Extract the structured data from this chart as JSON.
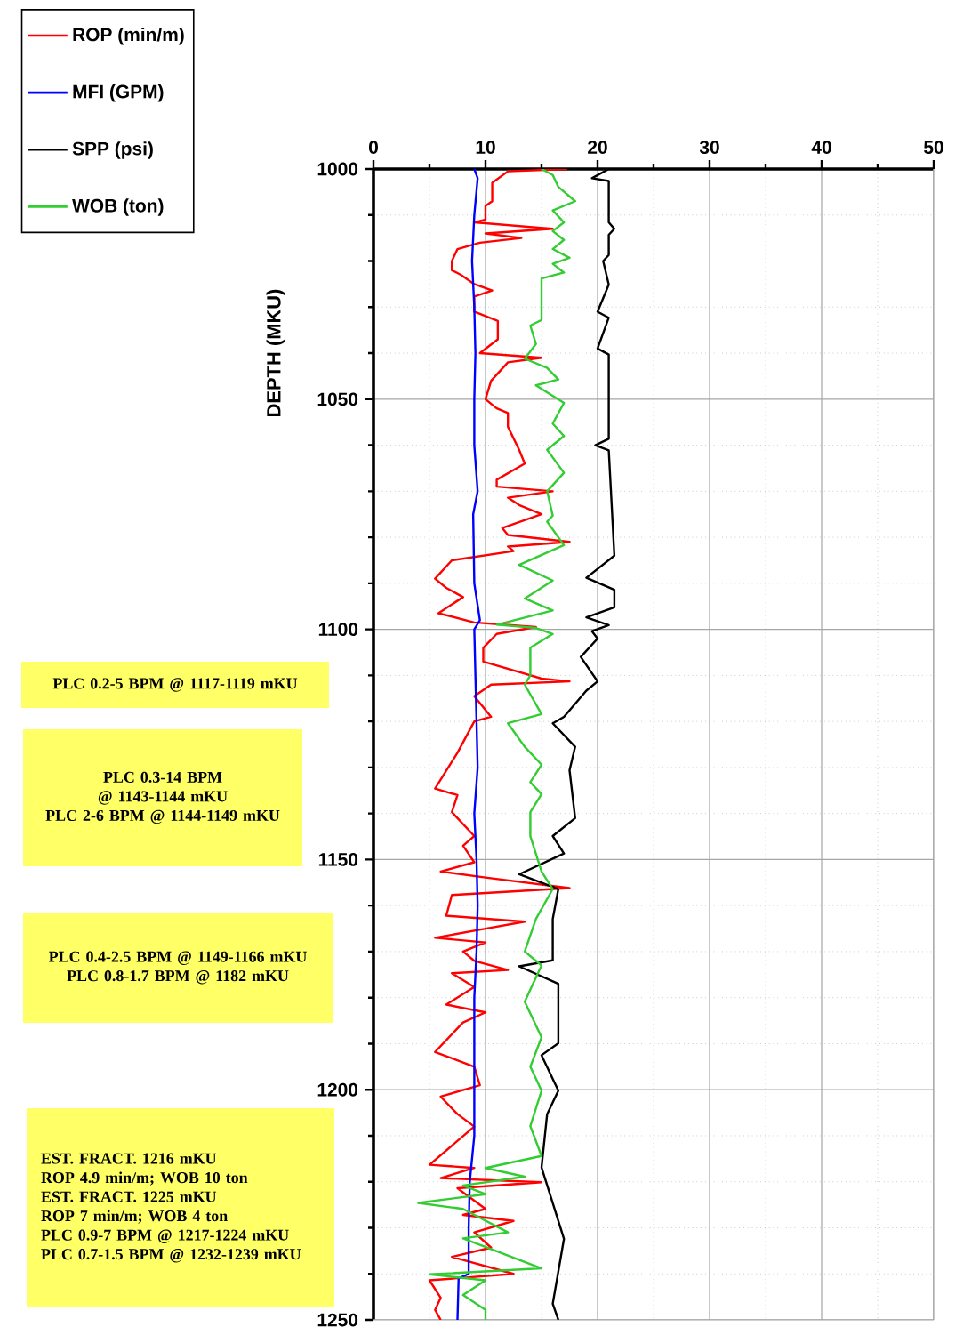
{
  "chart_data": {
    "type": "line",
    "ylabel": "DEPTH (MKU)",
    "xlim": [
      0,
      50
    ],
    "xticks": [
      0,
      10,
      20,
      30,
      40,
      50
    ],
    "ylim": [
      1250,
      1000
    ],
    "yticks": [
      1000,
      1050,
      1100,
      1150,
      1200,
      1250
    ],
    "grid": true,
    "legend": "top left",
    "series": [
      {
        "name": "ROP (min/m)",
        "color": "#ff0000",
        "x": [
          17.3,
          12,
          10.6,
          10.6,
          10,
          10,
          9,
          16,
          10,
          13.2,
          9.5,
          7.5,
          7,
          7,
          7.8,
          9,
          10.6,
          9,
          9,
          11.1,
          11.1,
          9.5,
          15,
          12,
          10.5,
          10,
          11,
          12,
          12,
          13,
          13.5,
          11,
          11,
          16,
          12,
          13,
          15,
          11.5,
          12,
          17.5,
          12,
          12.5,
          7,
          5.5,
          6.5,
          8,
          5.8,
          9,
          14.5,
          11,
          9.8,
          9.8,
          15,
          17.5,
          10.5,
          9,
          10.5,
          9,
          7.5,
          5.5,
          7.5,
          7,
          9,
          8,
          9,
          6,
          10,
          17.5,
          7,
          6.5,
          13.5,
          10,
          5.5,
          10,
          8,
          9,
          12,
          7,
          9,
          6.5,
          10,
          8,
          5.5,
          9,
          9.5,
          6,
          7.5,
          9,
          5,
          9,
          6,
          15,
          7.5,
          10,
          8,
          12.5,
          9,
          10.5,
          7,
          12.5,
          5,
          6,
          5.5,
          6
        ],
        "values": [
          1000,
          1000.5,
          1003,
          1007,
          1008,
          1011,
          1011.6,
          1013,
          1014,
          1015,
          1016,
          1017.4,
          1020,
          1022,
          1023,
          1025,
          1026.4,
          1027.7,
          1031,
          1033,
          1037,
          1040,
          1041,
          1042,
          1046,
          1050,
          1052,
          1053,
          1056,
          1061,
          1064,
          1067.5,
          1069,
          1070,
          1071.4,
          1073,
          1075,
          1078,
          1079.5,
          1081,
          1082,
          1083,
          1085,
          1089,
          1091,
          1093,
          1096.5,
          1098.5,
          1099.5,
          1101,
          1104,
          1107,
          1110.7,
          1111.3,
          1112,
          1114.5,
          1119,
          1120,
          1126.8,
          1134.6,
          1136,
          1139.7,
          1144.9,
          1147,
          1150.6,
          1152.6,
          1153.9,
          1156.2,
          1157.7,
          1162.2,
          1163.5,
          1165,
          1167,
          1168,
          1170,
          1172,
          1174,
          1174.7,
          1177.7,
          1181.5,
          1183.2,
          1185.4,
          1191.8,
          1195,
          1199,
          1201.5,
          1205.3,
          1208,
          1216.3,
          1217,
          1219.2,
          1220.1,
          1221.4,
          1225.9,
          1227.2,
          1228.5,
          1231,
          1234.3,
          1236.3,
          1240,
          1241.4,
          1245.2,
          1247.8,
          1250
        ]
      },
      {
        "name": "MFI (GPM)",
        "color": "#0000ff",
        "x": [
          9,
          9.3,
          9,
          8.8,
          9,
          9.1,
          9,
          9,
          9.3,
          8.9,
          9,
          9.5,
          9,
          9.2,
          9.3,
          9,
          9.2,
          9.3,
          9.2,
          9,
          9,
          8.6,
          8.5,
          8.5,
          7.6,
          7.5
        ],
        "values": [
          1000,
          1002,
          1010,
          1020,
          1030,
          1040,
          1050,
          1060,
          1070,
          1075,
          1090,
          1098,
          1100,
          1120,
          1130,
          1140,
          1150,
          1160,
          1170,
          1180,
          1210,
          1220,
          1230,
          1240,
          1241,
          1250
        ]
      },
      {
        "name": "SPP (psi)",
        "color": "#000000",
        "x": [
          21,
          19.5,
          21,
          21,
          21.5,
          21,
          21,
          20.5,
          21,
          20,
          21,
          20,
          21,
          21,
          19.8,
          21,
          21.5,
          19,
          21.5,
          21.5,
          19,
          21,
          19.5,
          20,
          18.5,
          20,
          19,
          17,
          16,
          18,
          17.5,
          18,
          16,
          17,
          13,
          16.5,
          16,
          16,
          13,
          16.5,
          16.5,
          15,
          16.5,
          15.5,
          15,
          16,
          17,
          16,
          16.5
        ],
        "values": [
          1000,
          1002,
          1002.6,
          1011.6,
          1013,
          1014.3,
          1018.7,
          1020,
          1025.1,
          1031,
          1032.3,
          1039,
          1040.3,
          1058.6,
          1060,
          1061.1,
          1084,
          1088.8,
          1091.4,
          1095.2,
          1097.4,
          1099.1,
          1100.4,
          1102,
          1106,
          1111.3,
          1113.3,
          1119,
          1120.4,
          1125.5,
          1130.6,
          1141,
          1144.9,
          1148.7,
          1153.2,
          1156.4,
          1162.9,
          1171.9,
          1173.2,
          1177,
          1189.9,
          1192.5,
          1200.2,
          1205.3,
          1216.9,
          1224.6,
          1232.4,
          1246.5,
          1250
        ]
      },
      {
        "name": "WOB (ton)",
        "color": "#33cc33",
        "x": [
          15,
          16,
          16.5,
          18,
          16,
          17,
          16,
          17,
          16,
          17.5,
          16,
          17,
          15,
          15,
          14,
          14.5,
          13.5,
          15.5,
          16.5,
          14.5,
          17,
          16,
          17,
          15.5,
          17,
          15.5,
          16,
          15.5,
          17,
          13,
          16,
          13.5,
          16,
          11,
          14.5,
          16,
          14,
          14,
          13.5,
          15,
          12,
          13.5,
          15,
          14,
          15,
          14,
          14,
          15,
          16,
          14.5,
          13.5,
          15,
          13.5,
          15,
          14,
          15,
          14,
          15,
          10,
          13.5,
          8,
          10,
          4,
          8,
          12,
          8,
          15,
          5,
          10,
          8,
          10,
          10
        ],
        "values": [
          1000,
          1001.3,
          1003.9,
          1007,
          1009,
          1011.6,
          1013.5,
          1015.4,
          1017.4,
          1019.3,
          1020.6,
          1022.5,
          1023.8,
          1032.8,
          1034,
          1038,
          1041.2,
          1043.2,
          1045.7,
          1047,
          1050.8,
          1055.3,
          1058,
          1061,
          1066,
          1070,
          1075.3,
          1076.6,
          1081.7,
          1086,
          1089.4,
          1093.3,
          1095.9,
          1099,
          1099.7,
          1101,
          1104,
          1110,
          1112,
          1118.4,
          1120.4,
          1125.5,
          1129.4,
          1133.2,
          1135.8,
          1139.7,
          1144.9,
          1152.6,
          1156.4,
          1162.9,
          1170,
          1173,
          1180.9,
          1188.6,
          1195,
          1200.2,
          1207.9,
          1214.4,
          1217,
          1218.9,
          1220.8,
          1222.7,
          1224.6,
          1225.9,
          1231,
          1232.3,
          1238.8,
          1240.1,
          1241.4,
          1244.6,
          1247.8,
          1250
        ]
      }
    ],
    "annotations": [
      "PLC 0.2-5 BPM @ 1117-1119 mKU",
      "PLC 0.3-14 BPM @ 1143-1144 mKU",
      "PLC 2-6 BPM @ 1144-1149 mKU",
      "PLC 0.4-2.5 BPM @ 1149-1166 mKU",
      "PLC 0.8-1.7 BPM @ 1182 mKU",
      "EST. FRACT. 1216 mKU",
      "ROP 4.9 min/m; WOB 10 ton",
      "EST. FRACT. 1225 mKU",
      "ROP 7 min/m; WOB 4 ton",
      "PLC 0.9-7 BPM @ 1217-1224 mKU",
      "PLC 0.7-1.5 BPM @ 1232-1239 mKU"
    ]
  }
}
